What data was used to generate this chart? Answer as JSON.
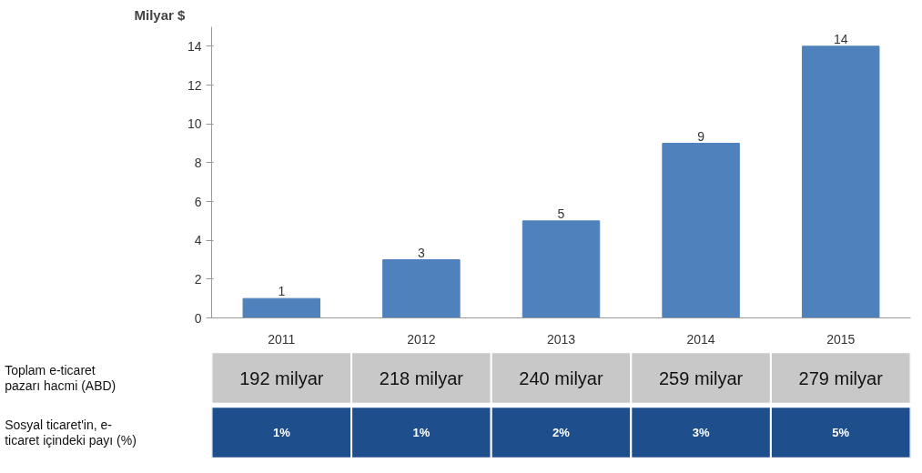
{
  "chart_data": {
    "type": "bar",
    "ylabel": "Milyar $",
    "categories": [
      "2011",
      "2012",
      "2013",
      "2014",
      "2015"
    ],
    "values": [
      1,
      3,
      5,
      9,
      14
    ],
    "color": "#4f81bd",
    "ylim": [
      0,
      15
    ],
    "yticks": [
      0,
      2,
      4,
      6,
      8,
      10,
      12,
      14
    ],
    "grid": false,
    "data_labels": true,
    "annotations": [
      "Toplam e-ticaret\npazarı hacmi (ABD)",
      "Sosyal ticaret'in, e-\nticaret içindeki payı (%)",
      "192 milyar",
      "218 milyar",
      "240 milyar",
      "259 milyar",
      "279 milyar",
      "1%",
      "1%",
      "2%",
      "3%",
      "5%"
    ]
  }
}
